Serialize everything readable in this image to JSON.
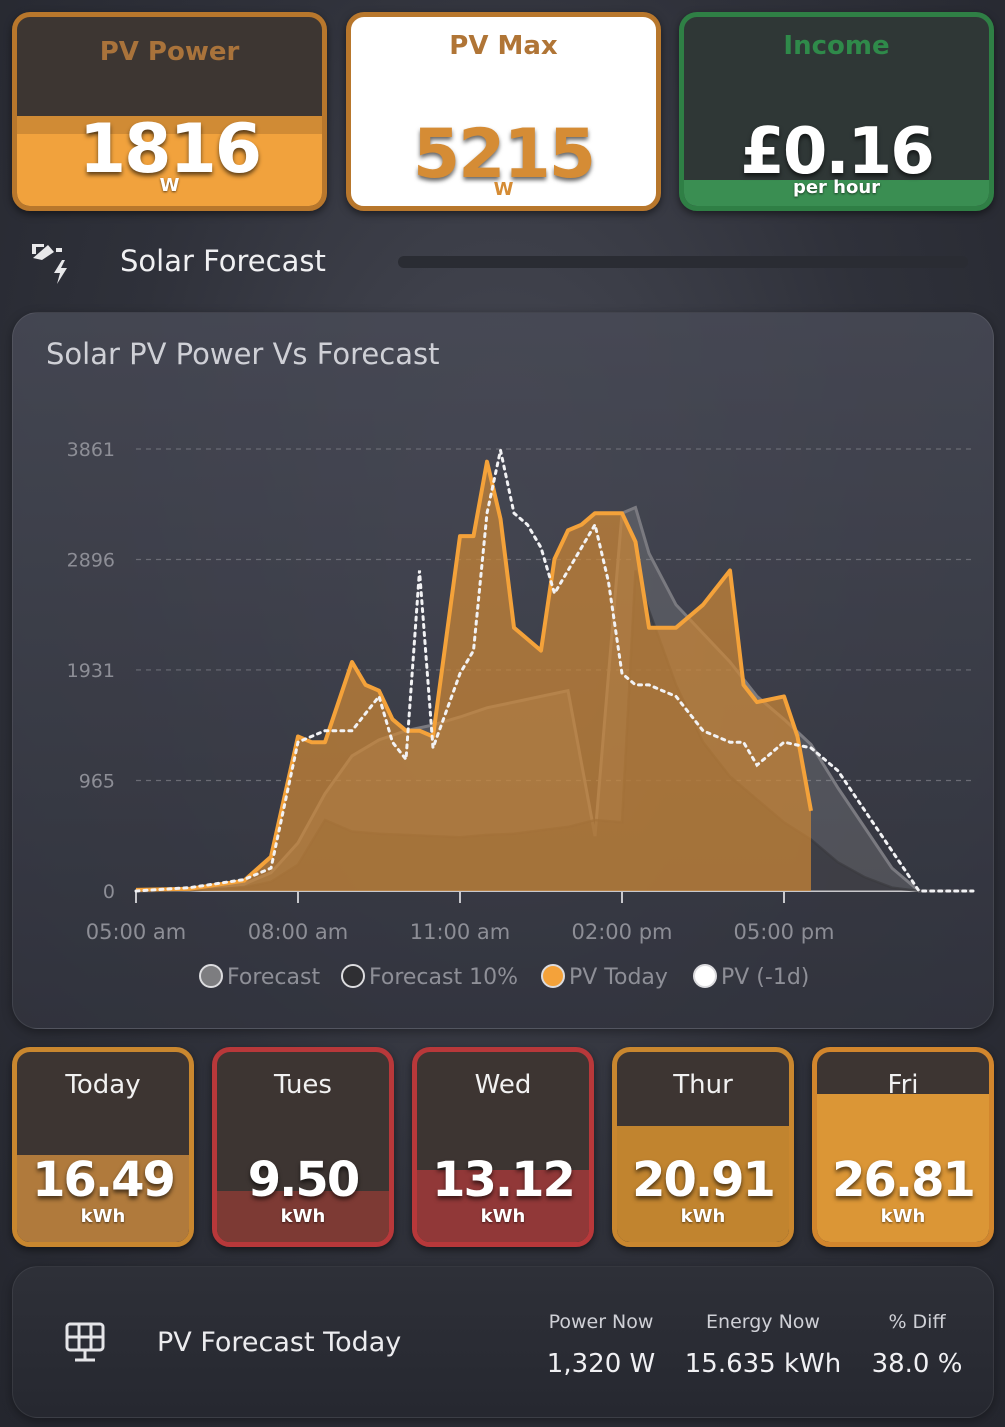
{
  "top_tiles": {
    "pv_power": {
      "title": "PV Power",
      "value": "1816",
      "unit": "W",
      "fill_fraction": 0.38
    },
    "pv_max": {
      "title": "PV Max",
      "value": "5215",
      "unit": "W"
    },
    "income": {
      "title": "Income",
      "value": "£0.16",
      "unit": "per hour",
      "fill_fraction": 0.14
    }
  },
  "section": {
    "title": "Solar Forecast"
  },
  "chart_data": {
    "type": "area",
    "title": "Solar PV Power Vs Forecast",
    "y_ticks": [
      "3861",
      "2896",
      "1931",
      "965",
      "0"
    ],
    "ylim": [
      0,
      3861
    ],
    "x_ticks": [
      "05:00 am",
      "08:00 am",
      "11:00 am",
      "02:00 pm",
      "05:00 pm"
    ],
    "xlim_hours": [
      5.0,
      20.5
    ],
    "legend": [
      {
        "name": "Forecast",
        "color": "#8a8a8a"
      },
      {
        "name": "Forecast 10%",
        "color": "#2a2a2a"
      },
      {
        "name": "PV Today",
        "color": "#f4a23a"
      },
      {
        "name": "PV (-1d)",
        "color": "#ffffff"
      }
    ],
    "legend_position": "bottom",
    "grid": true,
    "series": [
      {
        "name": "Forecast",
        "x": [
          5,
          6,
          7,
          7.5,
          8,
          8.5,
          9,
          9.5,
          10,
          10.5,
          11,
          11.5,
          12,
          12.5,
          13,
          13.5,
          14,
          14.25,
          14.5,
          15,
          15.5,
          16,
          16.5,
          17,
          17.5,
          18,
          18.5,
          19,
          19.5,
          20,
          20.5
        ],
        "y": [
          0,
          10,
          60,
          160,
          420,
          850,
          1180,
          1320,
          1400,
          1450,
          1520,
          1600,
          1650,
          1700,
          1750,
          480,
          3300,
          3350,
          2950,
          2500,
          2250,
          2000,
          1700,
          1500,
          1280,
          900,
          550,
          200,
          0,
          0,
          0
        ]
      },
      {
        "name": "Forecast 10%",
        "x": [
          5,
          6,
          7,
          7.5,
          8,
          8.5,
          9,
          9.5,
          10,
          10.5,
          11,
          11.5,
          12,
          12.5,
          13,
          13.5,
          14,
          14.25,
          14.5,
          15,
          15.5,
          16,
          16.5,
          17,
          17.5,
          18,
          18.5,
          19,
          19.5,
          20,
          20.5
        ],
        "y": [
          0,
          5,
          30,
          80,
          230,
          620,
          520,
          500,
          490,
          480,
          470,
          490,
          500,
          530,
          560,
          620,
          600,
          2800,
          2450,
          1800,
          1300,
          1000,
          800,
          600,
          450,
          250,
          120,
          30,
          0,
          0,
          0
        ]
      },
      {
        "name": "PV Today",
        "x": [
          5,
          6,
          7,
          7.5,
          8,
          8.25,
          8.5,
          9,
          9.25,
          9.5,
          9.75,
          10,
          10.25,
          10.5,
          11,
          11.25,
          11.5,
          11.75,
          12,
          12.25,
          12.5,
          12.75,
          13,
          13.25,
          13.5,
          14,
          14.25,
          14.5,
          15,
          15.5,
          16,
          16.25,
          16.5,
          17,
          17.25,
          17.5
        ],
        "y": [
          10,
          20,
          90,
          300,
          1350,
          1300,
          1300,
          2000,
          1800,
          1750,
          1500,
          1400,
          1400,
          1350,
          3100,
          3100,
          3750,
          3250,
          2300,
          2200,
          2100,
          2900,
          3150,
          3200,
          3300,
          3300,
          3050,
          2300,
          2300,
          2500,
          2800,
          1800,
          1650,
          1700,
          1350,
          700
        ]
      },
      {
        "name": "PV (-1d)",
        "x": [
          5,
          6,
          7,
          7.5,
          8,
          8.5,
          9,
          9.5,
          9.75,
          10,
          10.25,
          10.5,
          11,
          11.25,
          11.5,
          11.75,
          12,
          12.25,
          12.5,
          12.75,
          13,
          13.25,
          13.5,
          13.75,
          14,
          14.25,
          14.5,
          14.75,
          15,
          15.5,
          16,
          16.25,
          16.5,
          17,
          17.5,
          18,
          18.5,
          19,
          19.5,
          20,
          20.5
        ],
        "y": [
          0,
          30,
          100,
          200,
          1300,
          1400,
          1400,
          1700,
          1300,
          1150,
          2800,
          1250,
          1900,
          2100,
          3300,
          3850,
          3300,
          3200,
          3000,
          2600,
          2800,
          3000,
          3200,
          2700,
          1900,
          1800,
          1800,
          1750,
          1700,
          1400,
          1300,
          1300,
          1100,
          1300,
          1250,
          1050,
          700,
          350,
          0,
          0,
          0
        ]
      }
    ]
  },
  "days": [
    {
      "day": "Today",
      "value": "16.49",
      "unit": "kWh",
      "fill_fraction": 0.46,
      "color": "#b07a3c"
    },
    {
      "day": "Tues",
      "value": "9.50",
      "unit": "kWh",
      "fill_fraction": 0.27,
      "color": "#7d3a34"
    },
    {
      "day": "Wed",
      "value": "13.12",
      "unit": "kWh",
      "fill_fraction": 0.38,
      "color": "#913838"
    },
    {
      "day": "Thur",
      "value": "20.91",
      "unit": "kWh",
      "fill_fraction": 0.61,
      "color": "#c1842f"
    },
    {
      "day": "Fri",
      "value": "26.81",
      "unit": "kWh",
      "fill_fraction": 0.78,
      "color": "#db9636"
    }
  ],
  "bottom": {
    "title": "PV Forecast Today",
    "icon": "solar-panel-icon",
    "stats": [
      {
        "label": "Power Now",
        "value": "1,320 W"
      },
      {
        "label": "Energy Now",
        "value": "15.635 kWh"
      },
      {
        "label": "% Diff",
        "value": "38.0 %"
      }
    ]
  }
}
